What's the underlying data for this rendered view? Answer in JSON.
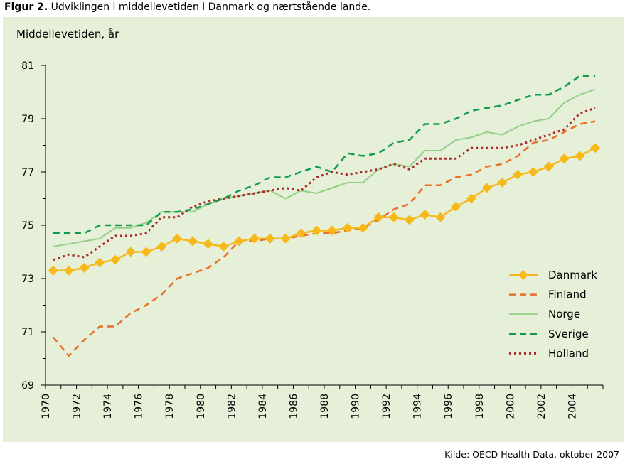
{
  "caption": {
    "figure_label": "Figur 2.",
    "text": "Udviklingen i middellevetiden i Danmark og nærtstående lande."
  },
  "source": "Kilde: OECD Health Data, oktober 2007",
  "colors": {
    "panel_bg": "#e6f0d9",
    "Danmark": "#f7b81a",
    "Finland": "#ea6f2a",
    "Norge": "#93cf84",
    "Sverige": "#129b4c",
    "Holland": "#a9282a"
  },
  "chart_data": {
    "type": "line",
    "ylabel": "Middellevetiden, år",
    "xlabel": "",
    "ylim": [
      69,
      81
    ],
    "yticks": [
      69,
      71,
      73,
      75,
      77,
      79,
      81
    ],
    "xlim": [
      1970,
      2006
    ],
    "xticks": [
      1970,
      1972,
      1974,
      1976,
      1978,
      1980,
      1982,
      1984,
      1986,
      1988,
      1990,
      1992,
      1994,
      1996,
      1998,
      2000,
      2002,
      2004
    ],
    "grid": false,
    "legend_position": "bottom-right",
    "series": [
      {
        "name": "Danmark",
        "style": "solid-diamond-markers",
        "x": [
          1970,
          1971,
          1972,
          1973,
          1974,
          1975,
          1976,
          1977,
          1978,
          1979,
          1980,
          1981,
          1982,
          1983,
          1984,
          1985,
          1986,
          1987,
          1988,
          1989,
          1990,
          1991,
          1992,
          1993,
          1994,
          1995,
          1996,
          1997,
          1998,
          1999,
          2000,
          2001,
          2002,
          2003,
          2004,
          2005
        ],
        "values": [
          73.3,
          73.3,
          73.4,
          73.6,
          73.7,
          74.0,
          74.0,
          74.2,
          74.5,
          74.4,
          74.3,
          74.2,
          74.4,
          74.5,
          74.5,
          74.5,
          74.7,
          74.8,
          74.8,
          74.9,
          74.9,
          75.3,
          75.3,
          75.2,
          75.4,
          75.3,
          75.7,
          76.0,
          76.4,
          76.6,
          76.9,
          77.0,
          77.2,
          77.5,
          77.6,
          77.9
        ]
      },
      {
        "name": "Finland",
        "style": "dashed",
        "x": [
          1970,
          1971,
          1972,
          1973,
          1974,
          1975,
          1976,
          1977,
          1978,
          1979,
          1980,
          1981,
          1982,
          1983,
          1984,
          1985,
          1986,
          1987,
          1988,
          1989,
          1990,
          1991,
          1992,
          1993,
          1994,
          1995,
          1996,
          1997,
          1998,
          1999,
          2000,
          2001,
          2002,
          2003,
          2004,
          2005
        ],
        "values": [
          70.8,
          70.1,
          70.7,
          71.2,
          71.2,
          71.7,
          72.0,
          72.4,
          73.0,
          73.2,
          73.4,
          73.8,
          74.4,
          74.4,
          74.5,
          74.5,
          74.6,
          74.7,
          74.7,
          74.8,
          74.9,
          75.2,
          75.6,
          75.8,
          76.5,
          76.5,
          76.8,
          76.9,
          77.2,
          77.3,
          77.6,
          78.1,
          78.2,
          78.5,
          78.8,
          78.9
        ]
      },
      {
        "name": "Norge",
        "style": "solid",
        "x": [
          1970,
          1971,
          1972,
          1973,
          1974,
          1975,
          1976,
          1977,
          1978,
          1979,
          1980,
          1981,
          1982,
          1983,
          1984,
          1985,
          1986,
          1987,
          1988,
          1989,
          1990,
          1991,
          1992,
          1993,
          1994,
          1995,
          1996,
          1997,
          1998,
          1999,
          2000,
          2001,
          2002,
          2003,
          2004,
          2005
        ],
        "values": [
          74.2,
          74.3,
          74.4,
          74.5,
          74.9,
          74.9,
          75.1,
          75.5,
          75.5,
          75.5,
          75.8,
          76.0,
          76.1,
          76.2,
          76.3,
          76.0,
          76.3,
          76.2,
          76.4,
          76.6,
          76.6,
          77.1,
          77.3,
          77.2,
          77.8,
          77.8,
          78.2,
          78.3,
          78.5,
          78.4,
          78.7,
          78.9,
          79.0,
          79.6,
          79.9,
          80.1
        ]
      },
      {
        "name": "Sverige",
        "style": "dashed",
        "x": [
          1970,
          1971,
          1972,
          1973,
          1974,
          1975,
          1976,
          1977,
          1978,
          1979,
          1980,
          1981,
          1982,
          1983,
          1984,
          1985,
          1986,
          1987,
          1988,
          1989,
          1990,
          1991,
          1992,
          1993,
          1994,
          1995,
          1996,
          1997,
          1998,
          1999,
          2000,
          2001,
          2002,
          2003,
          2004,
          2005
        ],
        "values": [
          74.7,
          74.7,
          74.7,
          75.0,
          75.0,
          75.0,
          75.0,
          75.5,
          75.5,
          75.6,
          75.8,
          76.0,
          76.3,
          76.5,
          76.8,
          76.8,
          77.0,
          77.2,
          77.0,
          77.7,
          77.6,
          77.7,
          78.1,
          78.2,
          78.8,
          78.8,
          79.0,
          79.3,
          79.4,
          79.5,
          79.7,
          79.9,
          79.9,
          80.2,
          80.6,
          80.6
        ]
      },
      {
        "name": "Holland",
        "style": "dotted",
        "x": [
          1970,
          1971,
          1972,
          1973,
          1974,
          1975,
          1976,
          1977,
          1978,
          1979,
          1980,
          1981,
          1982,
          1983,
          1984,
          1985,
          1986,
          1987,
          1988,
          1989,
          1990,
          1991,
          1992,
          1993,
          1994,
          1995,
          1996,
          1997,
          1998,
          1999,
          2000,
          2001,
          2002,
          2003,
          2004,
          2005
        ],
        "values": [
          73.7,
          73.9,
          73.8,
          74.2,
          74.6,
          74.6,
          74.7,
          75.3,
          75.3,
          75.7,
          75.9,
          76.0,
          76.1,
          76.2,
          76.3,
          76.4,
          76.3,
          76.8,
          77.0,
          76.9,
          77.0,
          77.1,
          77.3,
          77.1,
          77.5,
          77.5,
          77.5,
          77.9,
          77.9,
          77.9,
          78.0,
          78.2,
          78.4,
          78.6,
          79.2,
          79.4
        ]
      }
    ]
  }
}
